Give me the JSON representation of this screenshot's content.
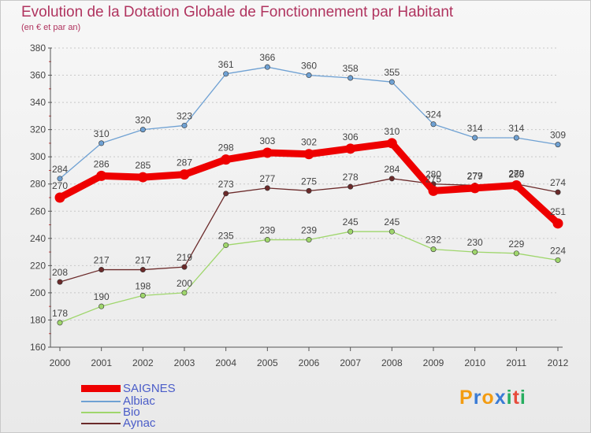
{
  "title": "Evolution de la Dotation Globale de Fonctionnement par Habitant",
  "subtitle": "(en € et par an)",
  "logo": {
    "letters": [
      "P",
      "r",
      "o",
      "x",
      "i",
      "t",
      "i"
    ],
    "colors": [
      "#f39c12",
      "#3a7bd5",
      "#f39c12",
      "#3a7bd5",
      "#27ae60",
      "#e74c3c",
      "#27ae60"
    ]
  },
  "legend": [
    {
      "label": "SAIGNES",
      "color": "#ee0000"
    },
    {
      "label": "Albiac",
      "color": "#6fa1d3"
    },
    {
      "label": "Bio",
      "color": "#9fd66c"
    },
    {
      "label": "Aynac",
      "color": "#6b2a2a"
    }
  ],
  "chart_data": {
    "type": "line",
    "title": "Evolution de la Dotation Globale de Fonctionnement par Habitant",
    "subtitle": "(en € et par an)",
    "x": [
      "2000",
      "2001",
      "2002",
      "2003",
      "2004",
      "2005",
      "2006",
      "2007",
      "2008",
      "2009",
      "2010",
      "2011",
      "2012"
    ],
    "ylim": [
      160,
      380
    ],
    "yticks": [
      160,
      180,
      200,
      220,
      240,
      260,
      280,
      300,
      320,
      340,
      360,
      380
    ],
    "grid": "horizontal-dashed",
    "legend_position": "bottom-left",
    "series": [
      {
        "name": "SAIGNES",
        "color": "#ee0000",
        "values": [
          270,
          286,
          285,
          287,
          298,
          303,
          302,
          306,
          310,
          275,
          277,
          279,
          251
        ]
      },
      {
        "name": "Albiac",
        "color": "#6fa1d3",
        "values": [
          284,
          310,
          320,
          323,
          361,
          366,
          360,
          358,
          355,
          324,
          314,
          314,
          309
        ]
      },
      {
        "name": "Bio",
        "color": "#9fd66c",
        "values": [
          178,
          190,
          198,
          200,
          235,
          239,
          239,
          245,
          245,
          232,
          230,
          229,
          224
        ]
      },
      {
        "name": "Aynac",
        "color": "#6b2a2a",
        "values": [
          208,
          217,
          217,
          219,
          273,
          277,
          275,
          278,
          284,
          280,
          279,
          280,
          274
        ]
      }
    ]
  }
}
